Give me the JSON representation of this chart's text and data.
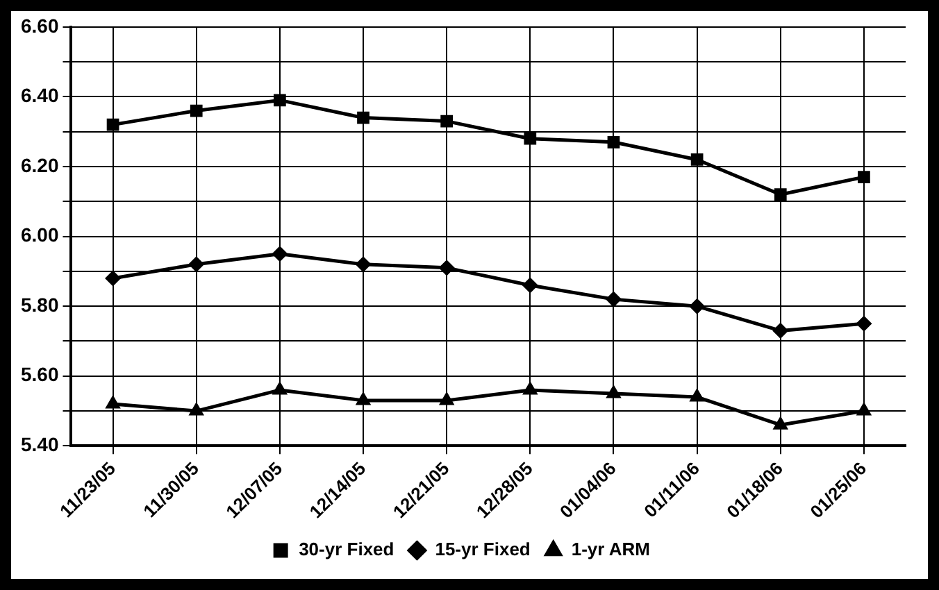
{
  "chart_data": {
    "type": "line",
    "categories": [
      "11/23/05",
      "11/30/05",
      "12/07/05",
      "12/14/05",
      "12/21/05",
      "12/28/05",
      "01/04/06",
      "01/11/06",
      "01/18/06",
      "01/25/06"
    ],
    "series": [
      {
        "name": "30-yr Fixed",
        "color": "#000000",
        "marker": "square",
        "values": [
          6.32,
          6.36,
          6.39,
          6.34,
          6.33,
          6.28,
          6.27,
          6.22,
          6.12,
          6.17
        ]
      },
      {
        "name": "15-yr Fixed",
        "color": "#000000",
        "marker": "diamond",
        "values": [
          5.88,
          5.92,
          5.95,
          5.92,
          5.91,
          5.86,
          5.82,
          5.8,
          5.73,
          5.75
        ]
      },
      {
        "name": "1-yr ARM",
        "color": "#000000",
        "marker": "triangle",
        "values": [
          5.52,
          5.5,
          5.56,
          5.53,
          5.53,
          5.56,
          5.55,
          5.54,
          5.46,
          5.5
        ]
      }
    ],
    "ylim": [
      5.4,
      6.6
    ],
    "yticks": [
      {
        "value": 5.4,
        "label": "5.40"
      },
      {
        "value": 5.5,
        "label": null
      },
      {
        "value": 5.6,
        "label": "5.60"
      },
      {
        "value": 5.7,
        "label": null
      },
      {
        "value": 5.8,
        "label": "5.80"
      },
      {
        "value": 5.9,
        "label": null
      },
      {
        "value": 6.0,
        "label": "6.00"
      },
      {
        "value": 6.1,
        "label": null
      },
      {
        "value": 6.2,
        "label": "6.20"
      },
      {
        "value": 6.3,
        "label": null
      },
      {
        "value": 6.4,
        "label": "6.40"
      },
      {
        "value": 6.5,
        "label": null
      },
      {
        "value": 6.6,
        "label": "6.60"
      }
    ],
    "grid": true,
    "legend": "bottom",
    "line_style": "solid"
  }
}
